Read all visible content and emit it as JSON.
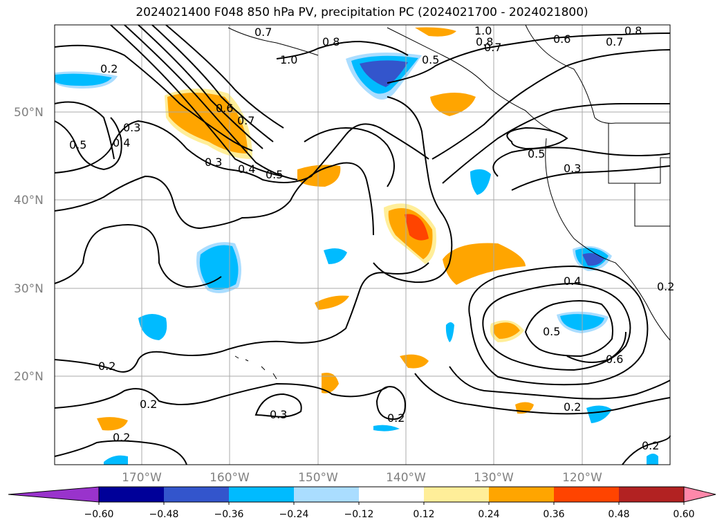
{
  "title": "2024021400 F048 850 hPa PV, precipitation PC (2024021700 - 2024021800)",
  "map": {
    "lat_labels": [
      "50°N",
      "40°N",
      "30°N",
      "20°N"
    ],
    "lon_labels": [
      "170°W",
      "160°W",
      "150°W",
      "140°W",
      "130°W",
      "120°W"
    ],
    "contour_labels": [
      "0.7",
      "0.8",
      "1.0",
      "0.8",
      "0.7",
      "0.6",
      "0.8",
      "0.7",
      "0.5",
      "1.0",
      "0.2",
      "0.3",
      "0.4",
      "0.5",
      "0.6",
      "0.7",
      "0.3",
      "0.4",
      "0.5",
      "0.5",
      "0.3",
      "0.4",
      "0.2",
      "0.5",
      "0.6",
      "0.2",
      "0.2",
      "0.3",
      "0.2",
      "0.2",
      "0.2",
      "0.2"
    ]
  },
  "colorbar": {
    "ticks": [
      "−0.60",
      "−0.48",
      "−0.36",
      "−0.24",
      "−0.12",
      "0.12",
      "0.24",
      "0.36",
      "0.48",
      "0.60"
    ],
    "colors": [
      "#9933cc",
      "#000099",
      "#3355cc",
      "#00bbff",
      "#aaddff",
      "#ffffff",
      "#ffee99",
      "#ffa500",
      "#ff4400",
      "#b22222",
      "#ff88aa"
    ]
  }
}
